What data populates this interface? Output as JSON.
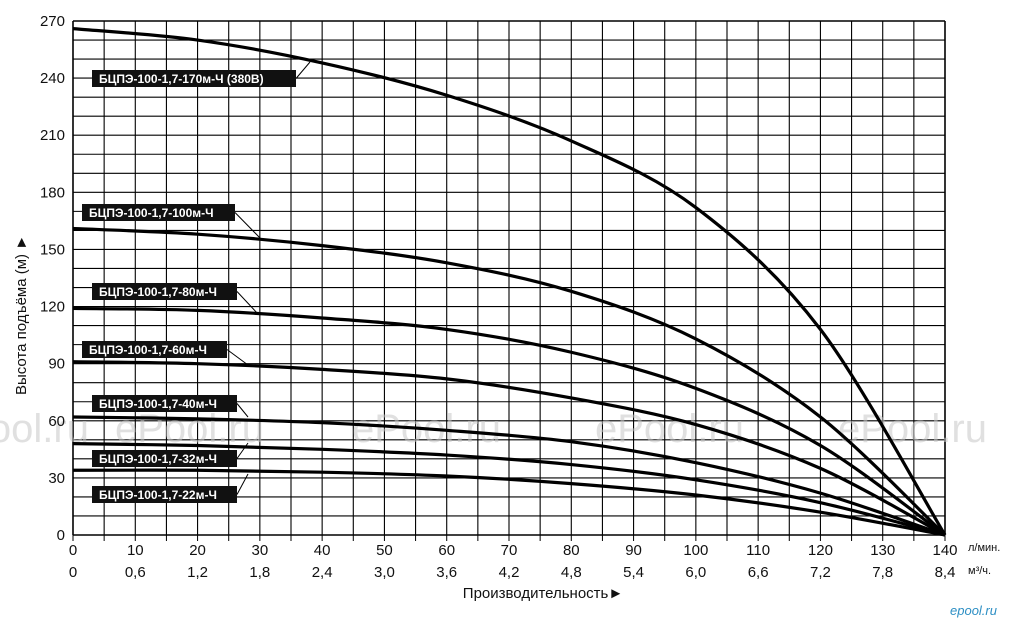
{
  "chart_data": {
    "type": "line",
    "xlabel": "Производительность►",
    "ylabel": "Высота подъёма (м) ►",
    "x_unit_primary": "л/мин.",
    "x_unit_secondary": "м³/ч.",
    "xlim": [
      0,
      140
    ],
    "ylim": [
      0,
      270
    ],
    "x_ticks_primary": [
      "0",
      "10",
      "20",
      "30",
      "40",
      "50",
      "60",
      "70",
      "80",
      "90",
      "100",
      "110",
      "120",
      "130",
      "140"
    ],
    "x_ticks_secondary": [
      "0",
      "0,6",
      "1,2",
      "1,8",
      "2,4",
      "3,0",
      "3,6",
      "4,2",
      "4,8",
      "5,4",
      "6,0",
      "6,6",
      "7,2",
      "7,8",
      "8,4"
    ],
    "y_ticks": [
      "0",
      "30",
      "60",
      "90",
      "120",
      "150",
      "180",
      "210",
      "240",
      "270"
    ],
    "grid": true,
    "series": [
      {
        "name": "БЦПЭ-100-1,7-170м-Ч (380В)",
        "x": [
          0,
          20,
          40,
          60,
          80,
          100,
          120,
          140
        ],
        "y": [
          266,
          260,
          248,
          231,
          207,
          172,
          108,
          0
        ]
      },
      {
        "name": "БЦПЭ-100-1,7-100м-Ч",
        "x": [
          0,
          20,
          40,
          60,
          80,
          100,
          120,
          140
        ],
        "y": [
          161,
          158,
          152,
          143,
          128,
          103,
          62,
          0
        ]
      },
      {
        "name": "БЦПЭ-100-1,7-80м-Ч",
        "x": [
          0,
          20,
          40,
          60,
          80,
          100,
          120,
          140
        ],
        "y": [
          119,
          118,
          114,
          108,
          96,
          77,
          47,
          0
        ]
      },
      {
        "name": "БЦПЭ-100-1,7-60м-Ч",
        "x": [
          0,
          20,
          40,
          60,
          80,
          100,
          120,
          140
        ],
        "y": [
          91,
          90,
          87,
          82,
          72,
          58,
          35,
          0
        ]
      },
      {
        "name": "БЦПЭ-100-1,7-40м-Ч",
        "x": [
          0,
          20,
          40,
          60,
          80,
          100,
          120,
          140
        ],
        "y": [
          62,
          61,
          59,
          55,
          49,
          38,
          22,
          0
        ]
      },
      {
        "name": "БЦПЭ-100-1,7-32м-Ч",
        "x": [
          0,
          20,
          40,
          60,
          80,
          100,
          120,
          140
        ],
        "y": [
          48,
          47,
          45,
          42,
          37,
          29,
          17,
          0
        ]
      },
      {
        "name": "БЦПЭ-100-1,7-22м-Ч",
        "x": [
          0,
          20,
          40,
          60,
          80,
          100,
          120,
          140
        ],
        "y": [
          34,
          34,
          33,
          31,
          27,
          21,
          12,
          0
        ]
      }
    ]
  },
  "watermark": {
    "text": "ePool.ru",
    "color": "#c8c8c8"
  },
  "logo": {
    "text": "epool.ru",
    "color": "#2d8fc4"
  }
}
